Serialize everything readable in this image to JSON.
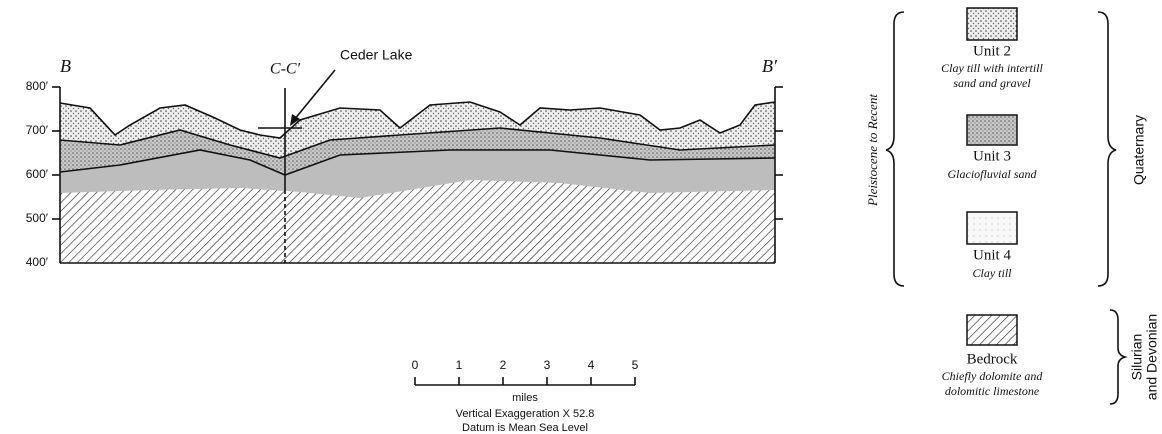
{
  "section": {
    "left_label": "B",
    "right_label": "B′",
    "cross_label": "C-C′",
    "lake_label": "Ceder Lake",
    "elevations": [
      "800′",
      "700′",
      "600′",
      "500′",
      "400′"
    ]
  },
  "scale": {
    "ticks": [
      "0",
      "1",
      "2",
      "3",
      "4",
      "5"
    ],
    "unit": "miles",
    "notes": [
      "Vertical Exaggeration X 52.8",
      "Datum is Mean Sea Level"
    ]
  },
  "legend": {
    "items": [
      {
        "label": "Unit 2",
        "description": [
          "Clay till with intertill",
          "sand and gravel"
        ]
      },
      {
        "label": "Unit 3",
        "description": [
          "Glaciofluvial sand"
        ]
      },
      {
        "label": "Unit 4",
        "description": [
          "Clay till"
        ]
      },
      {
        "label": "Bedrock",
        "description": [
          "Chiefly dolomite and",
          "dolomitic limestone"
        ]
      }
    ],
    "left_bracket": "Pleistocene to Recent",
    "right_brackets": [
      {
        "lines": [
          "Quaternary"
        ]
      },
      {
        "lines": [
          "Silurian",
          "and Devonian"
        ]
      }
    ]
  }
}
